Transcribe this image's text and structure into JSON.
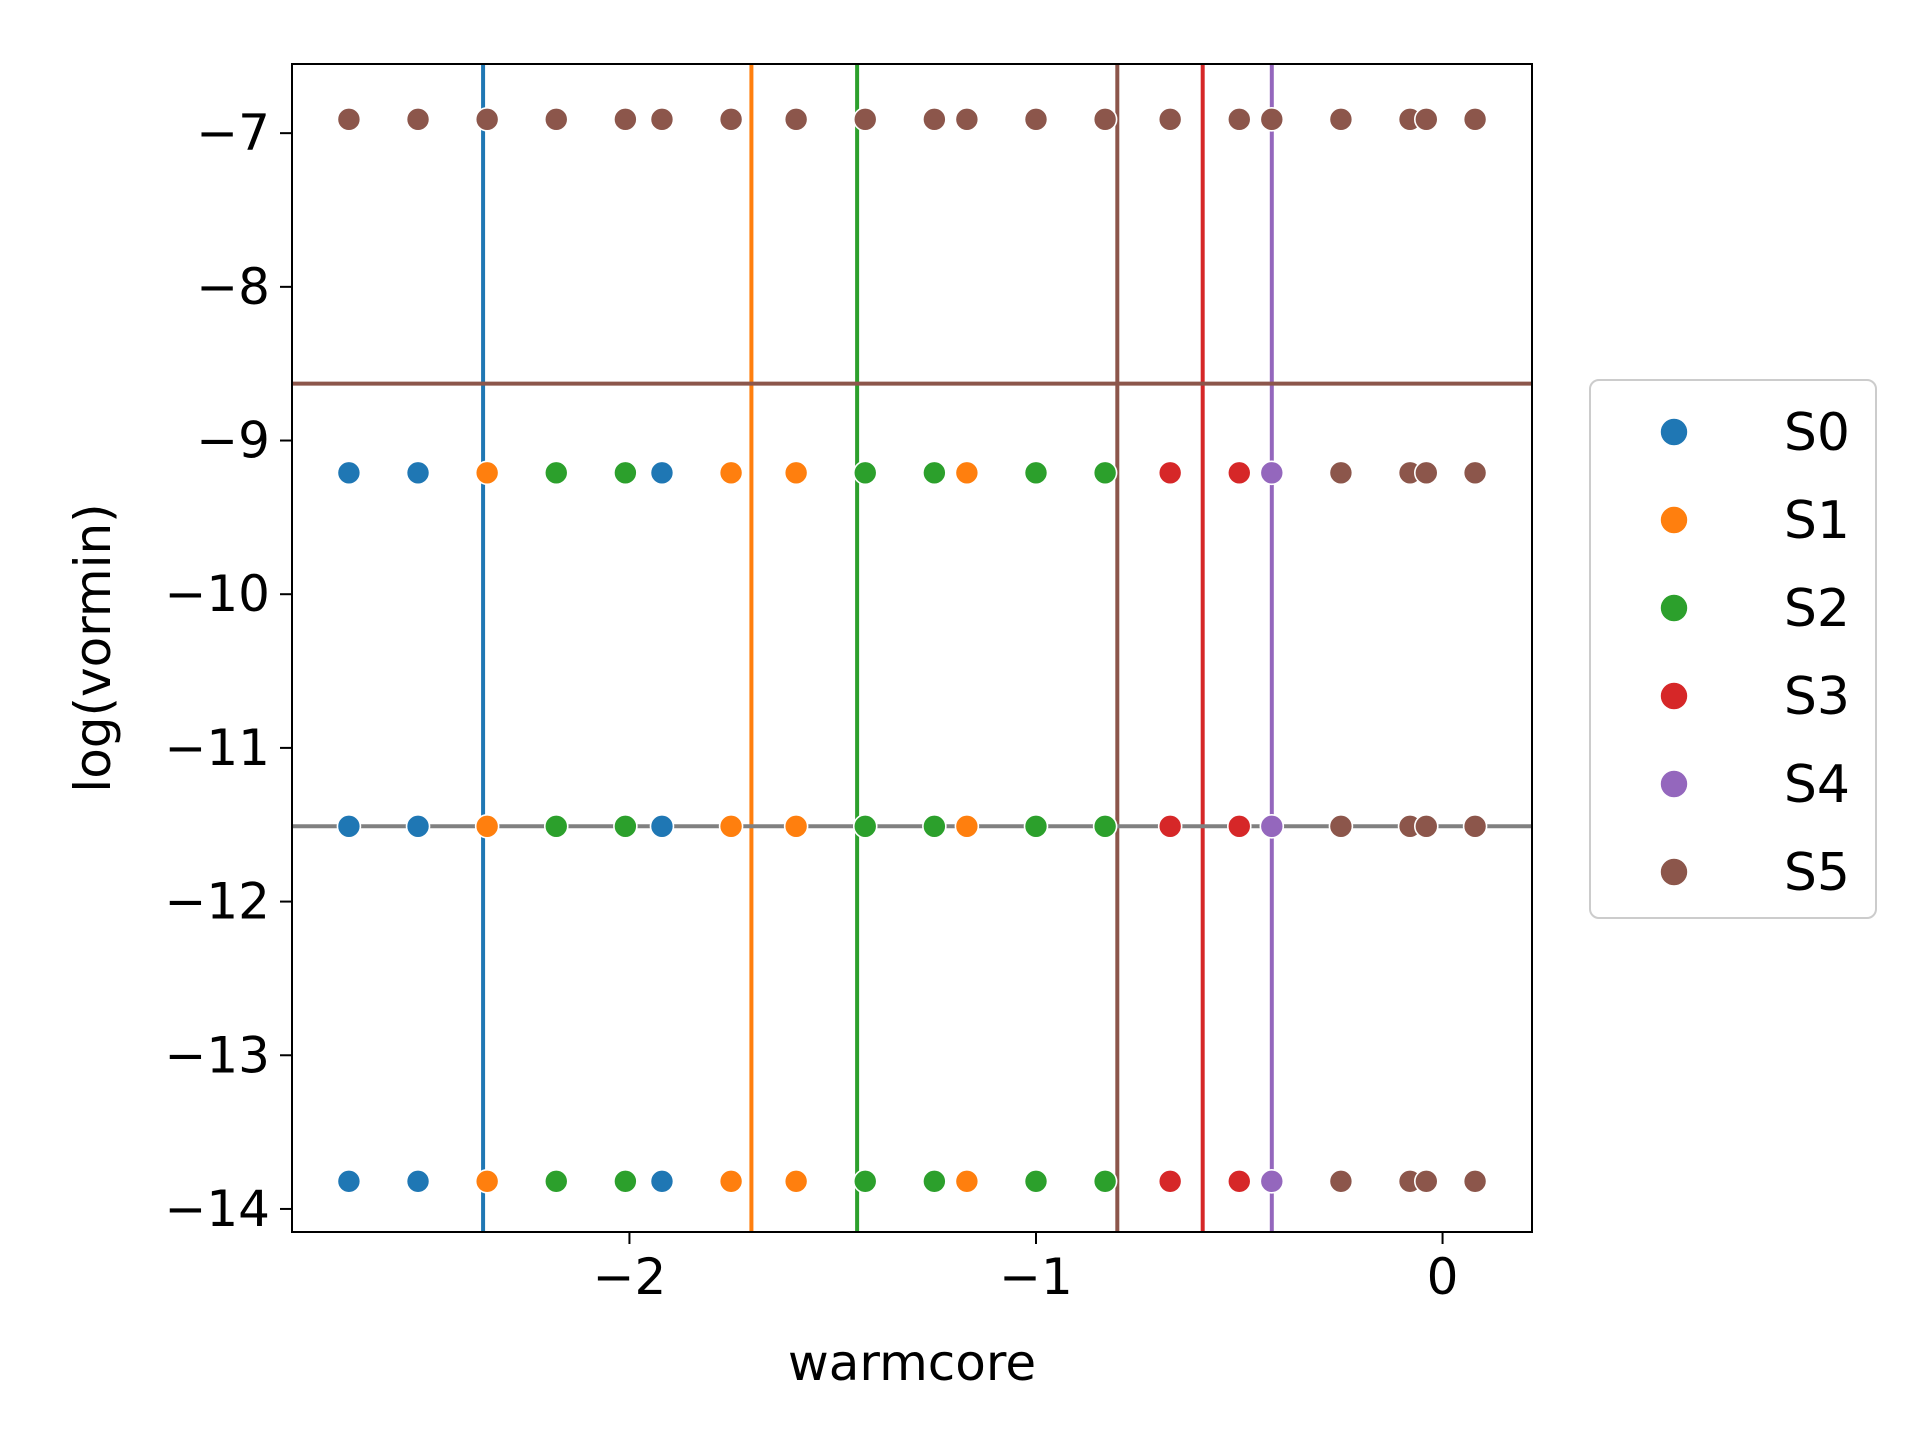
{
  "chart_data": {
    "type": "scatter",
    "xlabel": "warmcore",
    "ylabel": "log(vormin)",
    "xlim": [
      -2.83,
      0.22
    ],
    "ylim": [
      -14.15,
      -6.55
    ],
    "x_ticks": [
      -2,
      -1,
      0
    ],
    "x_tick_labels": [
      "−2",
      "−1",
      "0"
    ],
    "y_ticks": [
      -7,
      -8,
      -9,
      -10,
      -11,
      -12,
      -13,
      -14
    ],
    "y_tick_labels": [
      "−7",
      "−8",
      "−9",
      "−10",
      "−11",
      "−12",
      "−13",
      "−14"
    ],
    "grid": false,
    "legend_position": "outside-right",
    "series": [
      {
        "name": "S0",
        "color": "#1f77b4",
        "points": [
          [
            -2.69,
            -9.21
          ],
          [
            -2.52,
            -9.21
          ],
          [
            -1.92,
            -9.21
          ],
          [
            -2.69,
            -11.51
          ],
          [
            -2.52,
            -11.51
          ],
          [
            -1.92,
            -11.51
          ],
          [
            -2.69,
            -13.82
          ],
          [
            -2.52,
            -13.82
          ],
          [
            -1.92,
            -13.82
          ]
        ]
      },
      {
        "name": "S1",
        "color": "#ff7f0e",
        "points": [
          [
            -2.35,
            -9.21
          ],
          [
            -1.75,
            -9.21
          ],
          [
            -1.59,
            -9.21
          ],
          [
            -1.17,
            -9.21
          ],
          [
            -2.35,
            -11.51
          ],
          [
            -1.75,
            -11.51
          ],
          [
            -1.59,
            -11.51
          ],
          [
            -1.17,
            -11.51
          ],
          [
            -2.35,
            -13.82
          ],
          [
            -1.75,
            -13.82
          ],
          [
            -1.59,
            -13.82
          ],
          [
            -1.17,
            -13.82
          ]
        ]
      },
      {
        "name": "S2",
        "color": "#2ca02c",
        "points": [
          [
            -2.18,
            -9.21
          ],
          [
            -2.01,
            -9.21
          ],
          [
            -1.42,
            -9.21
          ],
          [
            -1.25,
            -9.21
          ],
          [
            -1.0,
            -9.21
          ],
          [
            -0.83,
            -9.21
          ],
          [
            -2.18,
            -11.51
          ],
          [
            -2.01,
            -11.51
          ],
          [
            -1.42,
            -11.51
          ],
          [
            -1.25,
            -11.51
          ],
          [
            -1.0,
            -11.51
          ],
          [
            -0.83,
            -11.51
          ],
          [
            -2.18,
            -13.82
          ],
          [
            -2.01,
            -13.82
          ],
          [
            -1.42,
            -13.82
          ],
          [
            -1.25,
            -13.82
          ],
          [
            -1.0,
            -13.82
          ],
          [
            -0.83,
            -13.82
          ]
        ]
      },
      {
        "name": "S3",
        "color": "#d62728",
        "points": [
          [
            -0.67,
            -9.21
          ],
          [
            -0.5,
            -9.21
          ],
          [
            -0.67,
            -11.51
          ],
          [
            -0.5,
            -11.51
          ],
          [
            -0.67,
            -13.82
          ],
          [
            -0.5,
            -13.82
          ]
        ]
      },
      {
        "name": "S4",
        "color": "#9467bd",
        "points": [
          [
            -0.42,
            -9.21
          ],
          [
            -0.42,
            -11.51
          ],
          [
            -0.42,
            -13.82
          ]
        ]
      },
      {
        "name": "S5",
        "color": "#8c564b",
        "points": [
          [
            -2.69,
            -6.91
          ],
          [
            -2.52,
            -6.91
          ],
          [
            -2.35,
            -6.91
          ],
          [
            -2.18,
            -6.91
          ],
          [
            -2.01,
            -6.91
          ],
          [
            -1.92,
            -6.91
          ],
          [
            -1.75,
            -6.91
          ],
          [
            -1.59,
            -6.91
          ],
          [
            -1.42,
            -6.91
          ],
          [
            -1.25,
            -6.91
          ],
          [
            -1.17,
            -6.91
          ],
          [
            -1.0,
            -6.91
          ],
          [
            -0.83,
            -6.91
          ],
          [
            -0.67,
            -6.91
          ],
          [
            -0.5,
            -6.91
          ],
          [
            -0.42,
            -6.91
          ],
          [
            -0.25,
            -6.91
          ],
          [
            -0.08,
            -6.91
          ],
          [
            -0.04,
            -6.91
          ],
          [
            0.08,
            -6.91
          ],
          [
            -0.25,
            -9.21
          ],
          [
            -0.08,
            -9.21
          ],
          [
            -0.04,
            -9.21
          ],
          [
            0.08,
            -9.21
          ],
          [
            -0.25,
            -11.51
          ],
          [
            -0.08,
            -11.51
          ],
          [
            -0.04,
            -11.51
          ],
          [
            0.08,
            -11.51
          ],
          [
            -0.25,
            -13.82
          ],
          [
            -0.08,
            -13.82
          ],
          [
            -0.04,
            -13.82
          ],
          [
            0.08,
            -13.82
          ]
        ]
      }
    ],
    "vertical_lines": [
      {
        "series": "S0",
        "x": -2.36,
        "color": "#1f77b4"
      },
      {
        "series": "S1",
        "x": -1.7,
        "color": "#ff7f0e"
      },
      {
        "series": "S2",
        "x": -1.44,
        "color": "#2ca02c"
      },
      {
        "series": "S5",
        "x": -0.8,
        "color": "#8c564b"
      },
      {
        "series": "S3",
        "x": -0.59,
        "color": "#d62728"
      },
      {
        "series": "S4",
        "x": -0.42,
        "color": "#9467bd"
      }
    ],
    "horizontal_lines": [
      {
        "y": -8.63,
        "color": "#8c564b"
      },
      {
        "y": -11.51,
        "color": "#808080"
      }
    ]
  }
}
